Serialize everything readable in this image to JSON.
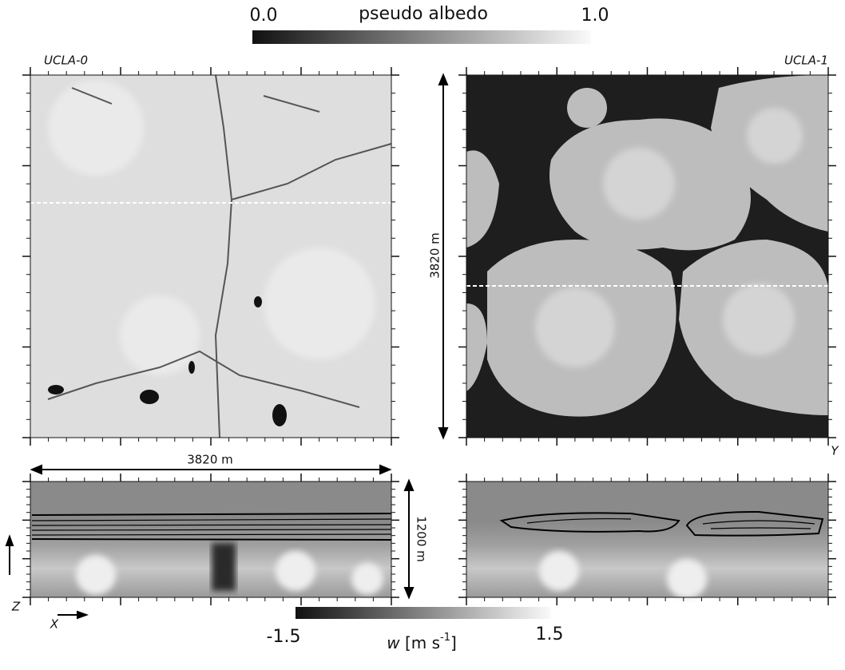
{
  "colorbars": {
    "albedo": {
      "min": "0.0",
      "label": "pseudo albedo",
      "max": "1.0"
    },
    "w": {
      "min": "-1.5",
      "var": "w",
      "unit": "[m s",
      "exp": "-1",
      "close": "]",
      "max": "1.5"
    }
  },
  "panels": {
    "left": {
      "label": "UCLA-0"
    },
    "right": {
      "label": "UCLA-1"
    }
  },
  "dimensions": {
    "horizontal": "3820 m",
    "vertical": "3820 m",
    "depth": "1200 m"
  },
  "axes": {
    "x": "X",
    "y": "Y",
    "z": "Z"
  }
}
